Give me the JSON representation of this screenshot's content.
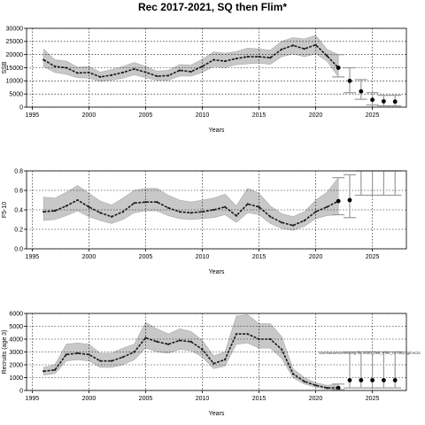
{
  "title": "Rec 2017-2021, SQ then Flim*",
  "note": "stockassessment.org fit: 2020_fast_Flim_r17362, git:ec2c",
  "chart_data": [
    {
      "id": "ssb",
      "type": "line",
      "ylabel": "SSB",
      "xlabel": "Years",
      "xlim": [
        1994.5,
        2028
      ],
      "ylim": [
        0,
        30000
      ],
      "xticks": [
        1995,
        2000,
        2005,
        2010,
        2015,
        2020,
        2025
      ],
      "yticks": [
        0,
        5000,
        10000,
        15000,
        20000,
        25000,
        30000
      ],
      "grid": true,
      "x": [
        1996,
        1997,
        1998,
        1999,
        2000,
        2001,
        2002,
        2003,
        2004,
        2005,
        2006,
        2007,
        2008,
        2009,
        2010,
        2011,
        2012,
        2013,
        2014,
        2015,
        2016,
        2017,
        2018,
        2019,
        2020,
        2021,
        2022
      ],
      "median": [
        18000,
        15500,
        15000,
        13000,
        13200,
        11500,
        12200,
        13200,
        14500,
        13300,
        11800,
        12000,
        14000,
        13500,
        15500,
        18000,
        17500,
        18500,
        19200,
        19200,
        18800,
        22000,
        23500,
        22200,
        23700,
        19500,
        15000
      ],
      "lower": [
        15500,
        13200,
        12500,
        11200,
        11000,
        9800,
        10300,
        11000,
        12300,
        11200,
        10200,
        10200,
        11800,
        11800,
        13200,
        15500,
        15000,
        16200,
        16500,
        16800,
        16300,
        19200,
        20300,
        19200,
        20300,
        17500,
        11500
      ],
      "upper": [
        22000,
        18000,
        17500,
        15200,
        15500,
        13300,
        14300,
        15500,
        17000,
        15500,
        13700,
        14000,
        16200,
        16000,
        18200,
        21000,
        20500,
        21200,
        22500,
        22200,
        21700,
        25000,
        26500,
        26000,
        27300,
        22000,
        20000
      ],
      "projection": {
        "x": [
          2023,
          2024,
          2025,
          2026,
          2027
        ],
        "median": [
          10000,
          6000,
          2800,
          2200,
          2100
        ],
        "lower": [
          5500,
          3000,
          800,
          500,
          500
        ],
        "upper": [
          15000,
          10500,
          5500,
          4500,
          4500
        ]
      }
    },
    {
      "id": "fbar",
      "type": "line",
      "ylabel": "F5-10",
      "xlabel": "Years",
      "xlim": [
        1994.5,
        2028
      ],
      "ylim": [
        0,
        0.8
      ],
      "xticks": [
        1995,
        2000,
        2005,
        2010,
        2015,
        2020,
        2025
      ],
      "yticks": [
        0.0,
        0.2,
        0.4,
        0.6,
        0.8
      ],
      "ytick_labels": [
        "0.0",
        "0.2",
        "0.4",
        "0.6",
        "0.8"
      ],
      "grid": true,
      "x": [
        1996,
        1997,
        1998,
        1999,
        2000,
        2001,
        2002,
        2003,
        2004,
        2005,
        2006,
        2007,
        2008,
        2009,
        2010,
        2011,
        2012,
        2013,
        2014,
        2015,
        2016,
        2017,
        2018,
        2019,
        2020,
        2021,
        2022
      ],
      "median": [
        0.38,
        0.39,
        0.44,
        0.5,
        0.43,
        0.37,
        0.33,
        0.38,
        0.47,
        0.48,
        0.48,
        0.42,
        0.38,
        0.37,
        0.38,
        0.4,
        0.43,
        0.34,
        0.46,
        0.43,
        0.33,
        0.27,
        0.24,
        0.29,
        0.38,
        0.43,
        0.49
      ],
      "lower": [
        0.29,
        0.3,
        0.34,
        0.39,
        0.33,
        0.29,
        0.26,
        0.3,
        0.37,
        0.39,
        0.39,
        0.34,
        0.31,
        0.3,
        0.31,
        0.32,
        0.35,
        0.27,
        0.37,
        0.35,
        0.26,
        0.21,
        0.19,
        0.23,
        0.31,
        0.34,
        0.35
      ],
      "upper": [
        0.53,
        0.52,
        0.58,
        0.65,
        0.57,
        0.49,
        0.45,
        0.52,
        0.6,
        0.62,
        0.62,
        0.55,
        0.5,
        0.48,
        0.5,
        0.52,
        0.56,
        0.44,
        0.62,
        0.57,
        0.44,
        0.36,
        0.33,
        0.38,
        0.5,
        0.58,
        0.73
      ],
      "projection": {
        "x": [
          2023,
          2024,
          2025,
          2026,
          2027
        ],
        "median": [
          0.5,
          null,
          null,
          null,
          null
        ],
        "lower": [
          0.32,
          0.55,
          0.55,
          0.55,
          0.55
        ],
        "upper": [
          0.76,
          0.8,
          0.8,
          0.8,
          0.8
        ]
      }
    },
    {
      "id": "recruits",
      "type": "line",
      "ylabel": "Recruits (age 3)",
      "xlabel": "Years",
      "xlim": [
        1994.5,
        2028
      ],
      "ylim": [
        0,
        6000
      ],
      "xticks": [
        1995,
        2000,
        2005,
        2010,
        2015,
        2020,
        2025
      ],
      "yticks": [
        0,
        1000,
        2000,
        3000,
        4000,
        5000,
        6000
      ],
      "grid": true,
      "x": [
        1996,
        1997,
        1998,
        1999,
        2000,
        2001,
        2002,
        2003,
        2004,
        2005,
        2006,
        2007,
        2008,
        2009,
        2010,
        2011,
        2012,
        2013,
        2014,
        2015,
        2016,
        2017,
        2018,
        2019,
        2020,
        2021,
        2022
      ],
      "median": [
        1500,
        1600,
        2800,
        2900,
        2800,
        2300,
        2300,
        2600,
        3000,
        4100,
        3800,
        3600,
        3900,
        3800,
        3200,
        2100,
        2400,
        4400,
        4400,
        4000,
        4000,
        3200,
        1300,
        700,
        400,
        200,
        200
      ],
      "lower": [
        1200,
        1300,
        2300,
        2400,
        2300,
        1800,
        1800,
        2000,
        2400,
        3300,
        3000,
        2900,
        3200,
        3100,
        2600,
        1700,
        1900,
        3600,
        3700,
        3300,
        3300,
        2500,
        1000,
        500,
        250,
        100,
        50
      ],
      "upper": [
        1800,
        2000,
        3600,
        3700,
        3600,
        2900,
        2900,
        3300,
        3600,
        5300,
        4800,
        4400,
        4800,
        4600,
        3900,
        2700,
        3000,
        5800,
        5900,
        5200,
        5200,
        4200,
        1700,
        1000,
        600,
        400,
        500
      ],
      "projection": {
        "x": [
          2023,
          2024,
          2025,
          2026,
          2027
        ],
        "median": [
          800,
          800,
          800,
          800,
          800
        ],
        "lower": [
          200,
          200,
          200,
          200,
          200
        ],
        "upper": [
          3000,
          3000,
          3000,
          3000,
          3000
        ]
      }
    }
  ]
}
